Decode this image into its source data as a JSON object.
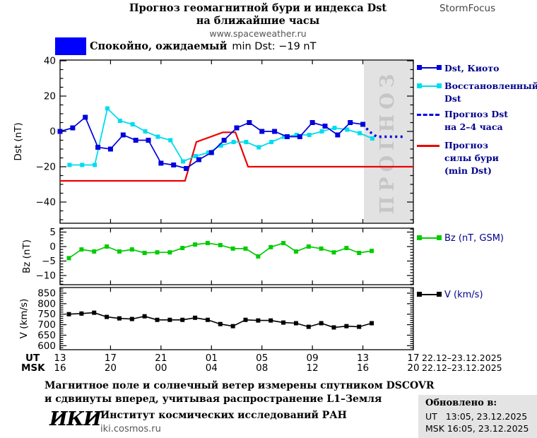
{
  "header": {
    "title_line1": "Прогноз геомагнитной бури и индекса Dst",
    "title_line2": "на ближайшие часы",
    "site": "www.spaceweather.ru",
    "brand": "StormFocus"
  },
  "status": {
    "label_ru": "Спокойно, ожидаемый",
    "label_en": "min Dst: −19 nT",
    "color": "#0000ff"
  },
  "forecast_band_label": "ПРОГНОЗ",
  "legend": {
    "kyoto": "Dst, Киото",
    "recovered_line1": "Восстановленный",
    "recovered_line2": "Dst",
    "forecast_line1": "Прогноз Dst",
    "forecast_line2": "на 2–4 часа",
    "storm_line1": "Прогноз",
    "storm_line2": "силы бури",
    "storm_line3": "(min Dst)",
    "bz": "Bz (nT, GSM)",
    "v": "V (km/s)"
  },
  "xaxis": {
    "ut_label": "UT",
    "msk_label": "MSK",
    "hours": [
      0,
      4,
      8,
      12,
      16,
      20,
      24,
      28
    ],
    "ut_ticks": [
      "13",
      "17",
      "21",
      "01",
      "05",
      "09",
      "13",
      "17"
    ],
    "msk_ticks": [
      "16",
      "20",
      "00",
      "04",
      "08",
      "12",
      "16",
      "20"
    ],
    "ut_date": "22.12–23.12.2025",
    "msk_date": "22.12–23.12.2025"
  },
  "footer": {
    "note_line1": "Магнитное поле и солнечный ветер измерены спутником DSCOVR",
    "note_line2": "и сдвинуты вперед, учитывая распространение L1–Земля",
    "logo": "ИКИ",
    "institute": "Институт космических исследований РАН",
    "site": "iki.cosmos.ru",
    "updated_label": "Обновлено в:",
    "updated_ut": "UT   13:05, 23.12.2025",
    "updated_msk": "MSK 16:05, 23.12.2025"
  },
  "chart_data": [
    {
      "type": "line",
      "ylabel": "Dst (nT)",
      "ylim": [
        -51,
        40
      ],
      "yticks": [
        40,
        20,
        0,
        -20,
        -40
      ],
      "xlim_hours": [
        0,
        28
      ],
      "forecast_band": {
        "start_hour": 24.08
      },
      "series": [
        {
          "id": "storm",
          "name": "Прогноз силы бури (min Dst)",
          "color": "#ee0000",
          "marker": false,
          "x": [
            0,
            9.9,
            10.8,
            12.9,
            13.9,
            14.9,
            28
          ],
          "values": [
            -28,
            -28,
            -6,
            -0.5,
            -0.5,
            -20,
            -20
          ]
        },
        {
          "id": "recovered",
          "name": "Восстановленный Dst",
          "color": "#00dcee",
          "marker": true,
          "x_start": 0.75,
          "x_step": 1,
          "values": [
            -19,
            -19,
            -19,
            13,
            6,
            4,
            0,
            -3,
            -5,
            -17,
            -14,
            -12,
            -8,
            -6,
            -6,
            -9,
            -6,
            -3,
            -2,
            -2,
            0,
            2,
            1,
            -1,
            -4
          ]
        },
        {
          "id": "kyoto",
          "name": "Dst, Киото",
          "color": "#0000dd",
          "marker": true,
          "x_start": 0,
          "x_step": 1,
          "values": [
            0,
            2,
            8,
            -9,
            -10,
            -2,
            -5,
            -5,
            -18,
            -19,
            -21,
            -16,
            -12,
            -5,
            2,
            5,
            0,
            0,
            -3,
            -3,
            5,
            3,
            -2,
            5,
            4
          ]
        },
        {
          "id": "forecast",
          "name": "Прогноз Dst на 2–4 часа",
          "color": "#0000dd",
          "marker": false,
          "style": "dotted",
          "x": [
            24,
            24.5,
            25.1,
            27.3
          ],
          "values": [
            4,
            0,
            -3,
            -3
          ]
        }
      ]
    },
    {
      "type": "line",
      "ylabel": "Bz (nT)",
      "ylim": [
        -13,
        6
      ],
      "yticks": [
        5,
        0,
        -5,
        -10
      ],
      "xlim_hours": [
        0,
        28
      ],
      "series": [
        {
          "id": "bz",
          "name": "Bz (nT, GSM)",
          "color": "#00cc00",
          "marker": true,
          "x_start": 0.7,
          "x_step": 1,
          "values": [
            -4,
            -1,
            -1.7,
            0,
            -1.7,
            -1,
            -2.2,
            -2,
            -2,
            -0.5,
            0.7,
            1.2,
            0.5,
            -0.7,
            -0.7,
            -3.4,
            -0.2,
            1.2,
            -1.7,
            0,
            -0.7,
            -2,
            -0.5,
            -2.2,
            -1.5
          ]
        }
      ]
    },
    {
      "type": "line",
      "ylabel": "V (km/s)",
      "ylim": [
        581,
        873
      ],
      "yticks": [
        850,
        800,
        750,
        700,
        650,
        600
      ],
      "xlim_hours": [
        0,
        28
      ],
      "series": [
        {
          "id": "v",
          "name": "V (km/s)",
          "color": "#000000",
          "marker": true,
          "x_start": 0.7,
          "x_step": 1,
          "values": [
            750,
            753,
            757,
            737,
            730,
            727,
            740,
            723,
            723,
            723,
            733,
            723,
            703,
            693,
            723,
            720,
            720,
            710,
            707,
            690,
            707,
            687,
            693,
            690,
            707
          ]
        }
      ]
    }
  ]
}
